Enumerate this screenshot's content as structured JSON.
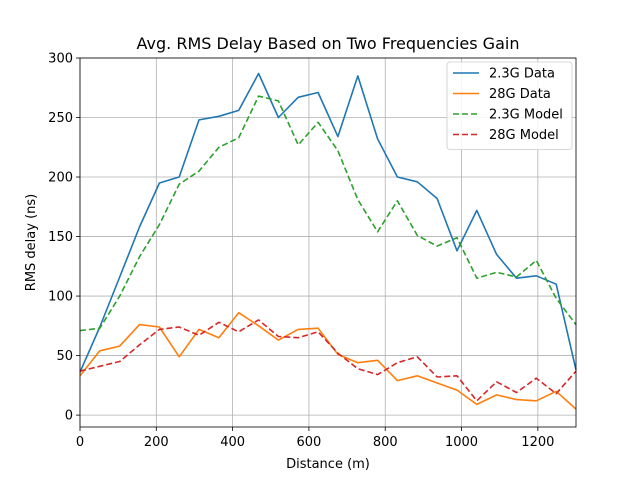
{
  "chart_data": {
    "type": "line",
    "title": "Avg. RMS Delay Based on Two Frequencies Gain",
    "xlabel": "Distance (m)",
    "ylabel": "RMS delay (ns)",
    "xlim": [
      0,
      1300
    ],
    "ylim": [
      -10,
      300
    ],
    "xticks": [
      0,
      200,
      400,
      600,
      800,
      1000,
      1200
    ],
    "yticks": [
      0,
      50,
      100,
      150,
      200,
      250,
      300
    ],
    "grid": true,
    "legend_position": "top-right",
    "x": [
      0,
      52,
      104,
      156,
      208,
      260,
      312,
      364,
      416,
      468,
      520,
      572,
      624,
      676,
      728,
      780,
      832,
      884,
      936,
      988,
      1040,
      1092,
      1144,
      1196,
      1248,
      1300
    ],
    "series": [
      {
        "name": "2.3G Data",
        "color": "#1f77b4",
        "dash": "solid",
        "values": [
          36,
          74,
          116,
          158,
          195,
          200,
          248,
          251,
          256,
          287,
          250,
          267,
          271,
          234,
          285,
          232,
          200,
          196,
          182,
          138,
          172,
          135,
          115,
          117,
          110,
          38
        ]
      },
      {
        "name": "28G Data",
        "color": "#ff7f0e",
        "dash": "solid",
        "values": [
          33,
          54,
          58,
          76,
          74,
          49,
          72,
          65,
          86,
          75,
          63,
          72,
          73,
          51,
          44,
          46,
          29,
          33,
          27,
          21,
          9,
          17,
          13,
          12,
          20,
          5
        ]
      },
      {
        "name": "2.3G Model",
        "color": "#2ca02c",
        "dash": "dashed",
        "values": [
          71,
          73,
          100,
          133,
          160,
          194,
          205,
          225,
          233,
          268,
          264,
          227,
          246,
          222,
          181,
          154,
          180,
          151,
          142,
          149,
          115,
          120,
          116,
          130,
          98,
          76
        ]
      },
      {
        "name": "28G Model",
        "color": "#d62728",
        "dash": "dashed",
        "values": [
          37,
          41,
          45,
          59,
          72,
          74,
          67,
          78,
          70,
          80,
          66,
          65,
          70,
          52,
          39,
          34,
          44,
          49,
          32,
          33,
          12,
          28,
          19,
          31,
          18,
          37
        ]
      }
    ]
  }
}
